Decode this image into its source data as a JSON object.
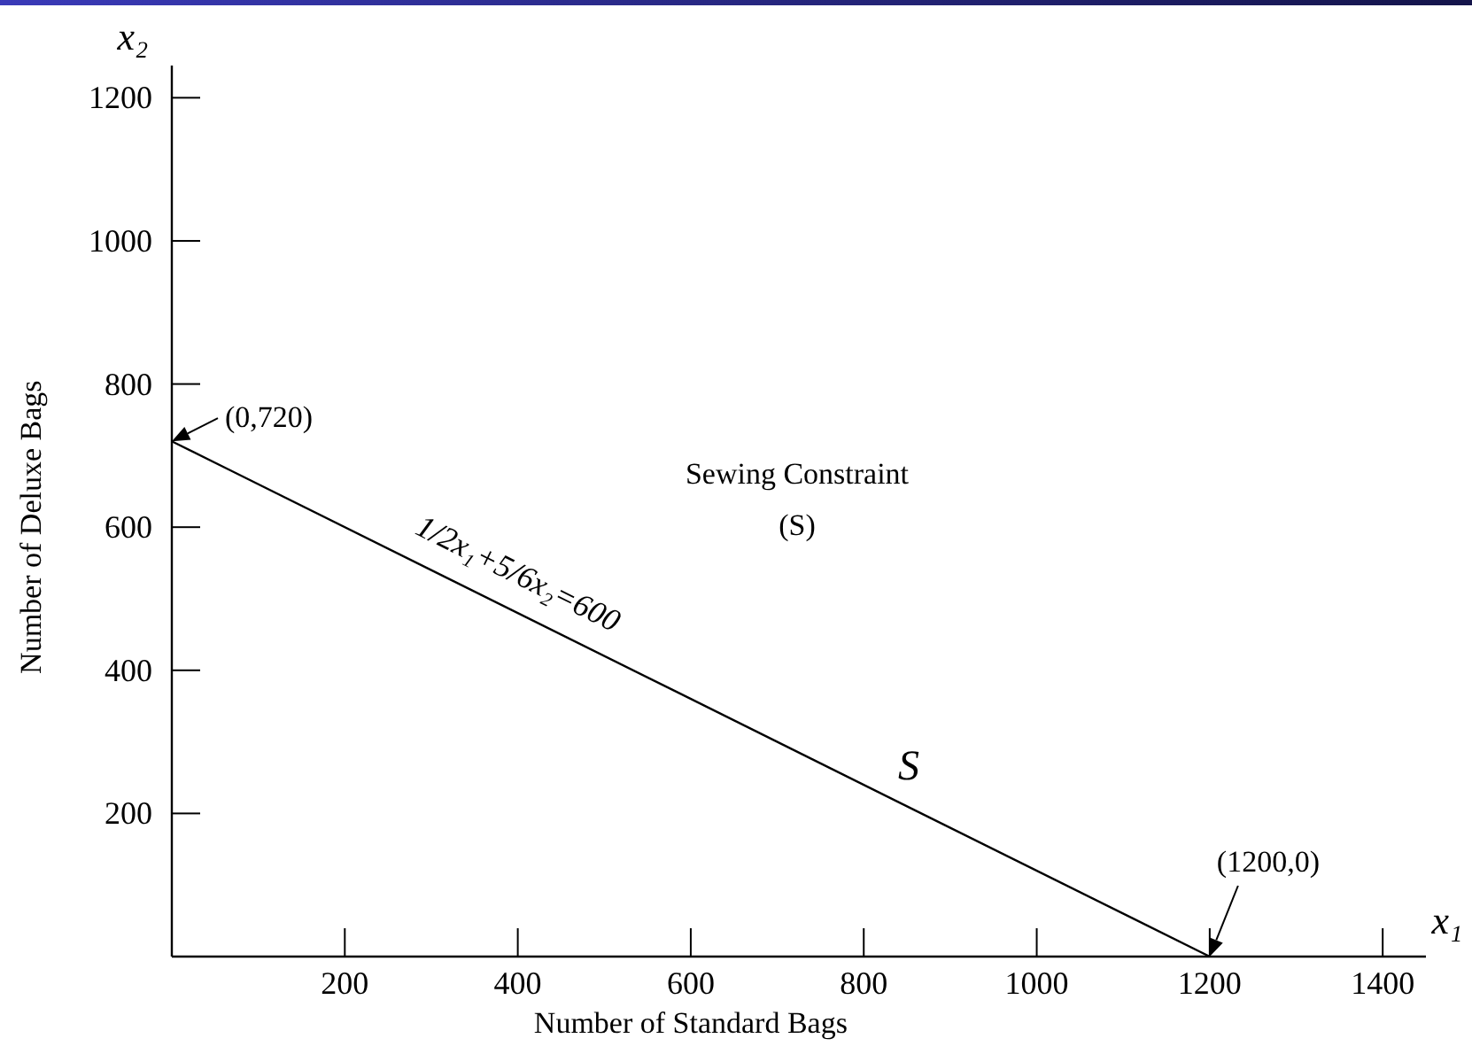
{
  "chart_data": {
    "type": "line",
    "xlabel": "Number of Standard Bags",
    "ylabel": "Number of Deluxe Bags",
    "xlim": [
      0,
      1450
    ],
    "ylim": [
      0,
      1245
    ],
    "xticks": [
      200,
      400,
      600,
      800,
      1000,
      1200,
      1400
    ],
    "yticks": [
      200,
      400,
      600,
      800,
      1000,
      1200
    ],
    "series": [
      {
        "type": "line",
        "color": "#000000",
        "x": [
          0,
          1200
        ],
        "values": [
          720,
          0
        ]
      }
    ],
    "marker": "none",
    "grid": false,
    "annotations": [
      {
        "text": "(0,720)",
        "x": 0,
        "y": 720
      },
      {
        "text": "(1200,0)",
        "x": 1200,
        "y": 0
      },
      "Sewing Constraint",
      "(S)",
      "1/2x₁+5/6x₂=600",
      "S",
      "x₁",
      "x₂"
    ]
  }
}
